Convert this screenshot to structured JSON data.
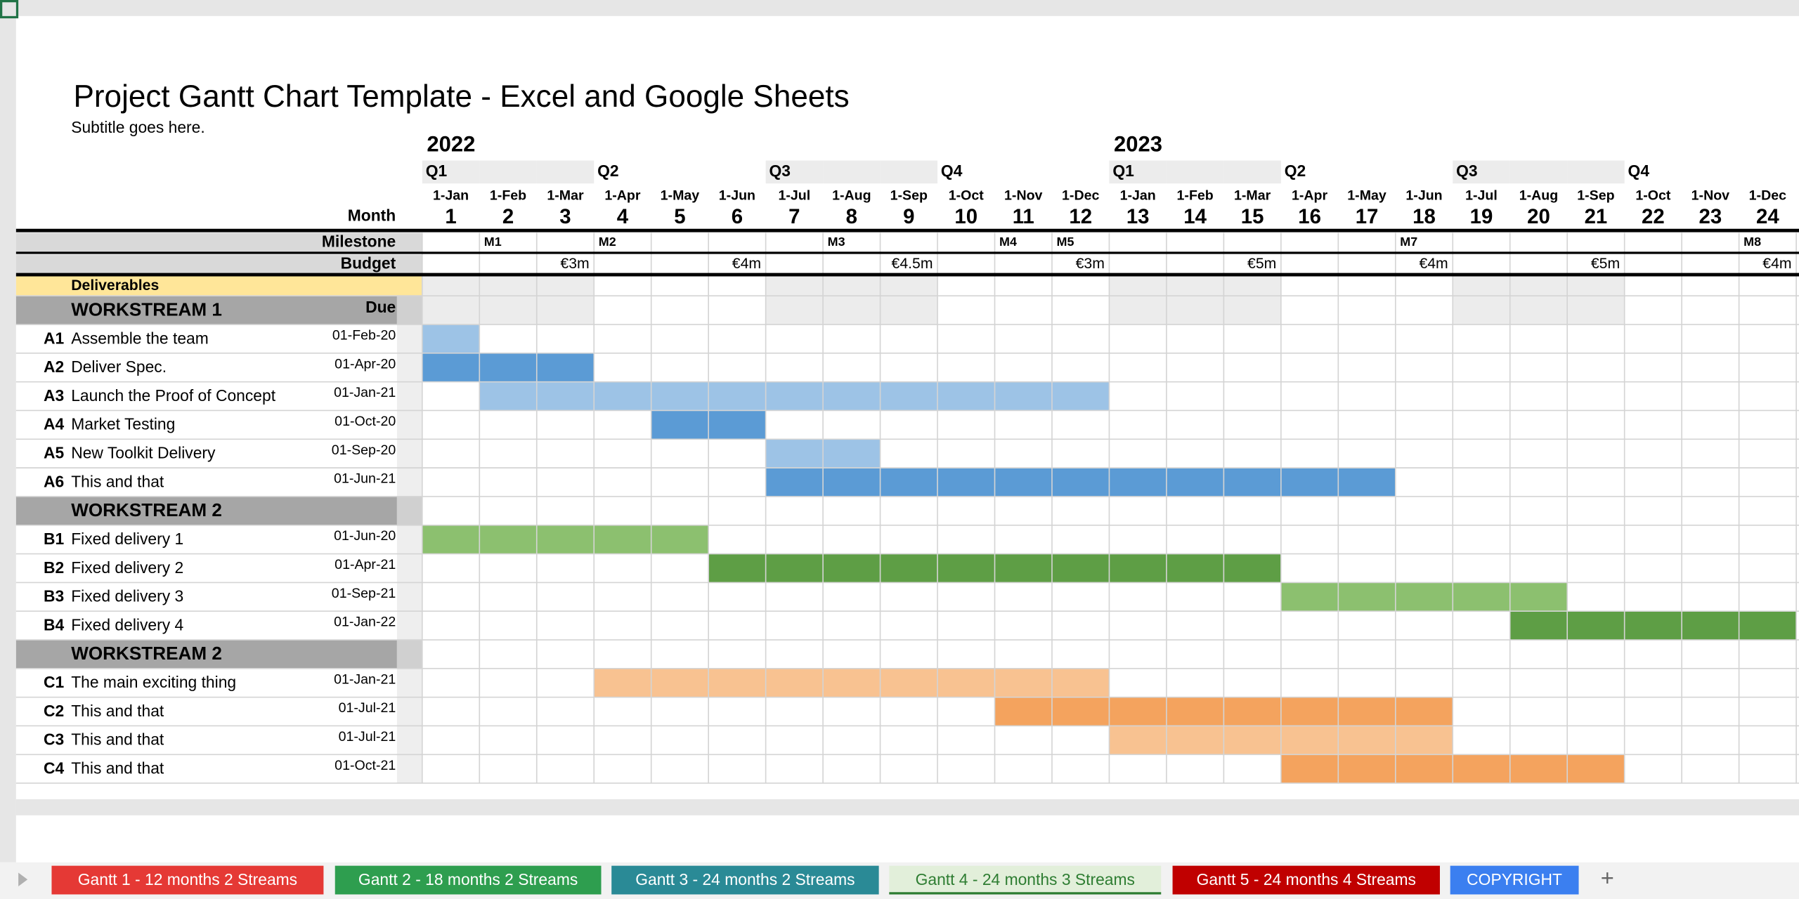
{
  "title": "Project Gantt Chart Template - Excel and Google Sheets",
  "subtitle": "Subtitle goes here.",
  "labels": {
    "month": "Month",
    "milestone": "Milestone",
    "budget": "Budget",
    "deliverables": "Deliverables"
  },
  "years": [
    "2022",
    null,
    null,
    null,
    null,
    null,
    null,
    null,
    null,
    null,
    null,
    null,
    "2023",
    null,
    null,
    null,
    null,
    null,
    null,
    null,
    null,
    null,
    null,
    null
  ],
  "quarters": [
    "Q1",
    null,
    null,
    "Q2",
    null,
    null,
    "Q3",
    null,
    null,
    "Q4",
    null,
    null,
    "Q1",
    null,
    null,
    "Q2",
    null,
    null,
    "Q3",
    null,
    null,
    "Q4",
    null,
    null
  ],
  "months": [
    "1-Jan",
    "1-Feb",
    "1-Mar",
    "1-Apr",
    "1-May",
    "1-Jun",
    "1-Jul",
    "1-Aug",
    "1-Sep",
    "1-Oct",
    "1-Nov",
    "1-Dec",
    "1-Jan",
    "1-Feb",
    "1-Mar",
    "1-Apr",
    "1-May",
    "1-Jun",
    "1-Jul",
    "1-Aug",
    "1-Sep",
    "1-Oct",
    "1-Nov",
    "1-Dec"
  ],
  "month_numbers": [
    1,
    2,
    3,
    4,
    5,
    6,
    7,
    8,
    9,
    10,
    11,
    12,
    13,
    14,
    15,
    16,
    17,
    18,
    19,
    20,
    21,
    22,
    23,
    24
  ],
  "milestones": [
    null,
    "M1",
    null,
    "M2",
    null,
    null,
    null,
    "M3",
    null,
    null,
    "M4",
    "M5",
    null,
    null,
    null,
    null,
    null,
    "M7",
    null,
    null,
    null,
    null,
    null,
    "M8"
  ],
  "budget": [
    null,
    null,
    "€3m",
    null,
    null,
    "€4m",
    null,
    null,
    "€4.5m",
    null,
    null,
    "€3m",
    null,
    null,
    "€5m",
    null,
    null,
    "€4m",
    null,
    null,
    "€5m",
    null,
    null,
    "€4m"
  ],
  "workstreams": [
    {
      "name": "WORKSTREAM 1",
      "due_header": "Due",
      "colors": [
        "#9dc3e6",
        "#5b9bd5"
      ],
      "tasks": [
        {
          "code": "A1",
          "name": "Assemble the team",
          "due": "01-Feb-20",
          "start": 1,
          "end": 1,
          "shade": 0
        },
        {
          "code": "A2",
          "name": "Deliver Spec.",
          "due": "01-Apr-20",
          "start": 1,
          "end": 3,
          "shade": 1
        },
        {
          "code": "A3",
          "name": "Launch the Proof of Concept",
          "due": "01-Jan-21",
          "start": 2,
          "end": 12,
          "shade": 0
        },
        {
          "code": "A4",
          "name": "Market Testing",
          "due": "01-Oct-20",
          "start": 5,
          "end": 6,
          "shade": 1
        },
        {
          "code": "A5",
          "name": "New Toolkit Delivery",
          "due": "01-Sep-20",
          "start": 7,
          "end": 8,
          "shade": 0
        },
        {
          "code": "A6",
          "name": "This and that",
          "due": "01-Jun-21",
          "start": 7,
          "end": 17,
          "shade": 1
        }
      ]
    },
    {
      "name": "WORKSTREAM 2",
      "colors": [
        "#8cc06f",
        "#5e9e45"
      ],
      "tasks": [
        {
          "code": "B1",
          "name": "Fixed delivery 1",
          "due": "01-Jun-20",
          "start": 1,
          "end": 5,
          "shade": 0
        },
        {
          "code": "B2",
          "name": "Fixed delivery 2",
          "due": "01-Apr-21",
          "start": 6,
          "end": 15,
          "shade": 1
        },
        {
          "code": "B3",
          "name": "Fixed delivery 3",
          "due": "01-Sep-21",
          "start": 16,
          "end": 20,
          "shade": 0
        },
        {
          "code": "B4",
          "name": "Fixed delivery 4",
          "due": "01-Jan-22",
          "start": 20,
          "end": 24,
          "shade": 1
        }
      ]
    },
    {
      "name": "WORKSTREAM 2",
      "colors": [
        "#f8c291",
        "#f4a35e"
      ],
      "tasks": [
        {
          "code": "C1",
          "name": "The main exciting thing",
          "due": "01-Jan-21",
          "start": 4,
          "end": 12,
          "shade": 0
        },
        {
          "code": "C2",
          "name": "This and that",
          "due": "01-Jul-21",
          "start": 11,
          "end": 18,
          "shade": 1
        },
        {
          "code": "C3",
          "name": "This and that",
          "due": "01-Jul-21",
          "start": 13,
          "end": 18,
          "shade": 0
        },
        {
          "code": "C4",
          "name": "This and that",
          "due": "01-Oct-21",
          "start": 16,
          "end": 21,
          "shade": 1
        }
      ]
    }
  ],
  "tabs": [
    {
      "label": "Gantt 1 - 12 months  2 Streams",
      "color": "#e53935",
      "active": false
    },
    {
      "label": "Gantt 2 - 18 months 2 Streams",
      "color": "#2e9e4f",
      "active": false
    },
    {
      "label": "Gantt 3 - 24 months 2 Streams",
      "color": "#2a8a96",
      "active": false
    },
    {
      "label": "Gantt 4 - 24 months 3 Streams",
      "color": "#2e7d32",
      "active": true
    },
    {
      "label": "Gantt 5 - 24 months 4 Streams",
      "color": "#c00000",
      "active": false
    },
    {
      "label": "COPYRIGHT",
      "color": "#3b7ff0",
      "active": false
    }
  ],
  "add_tab": "+"
}
